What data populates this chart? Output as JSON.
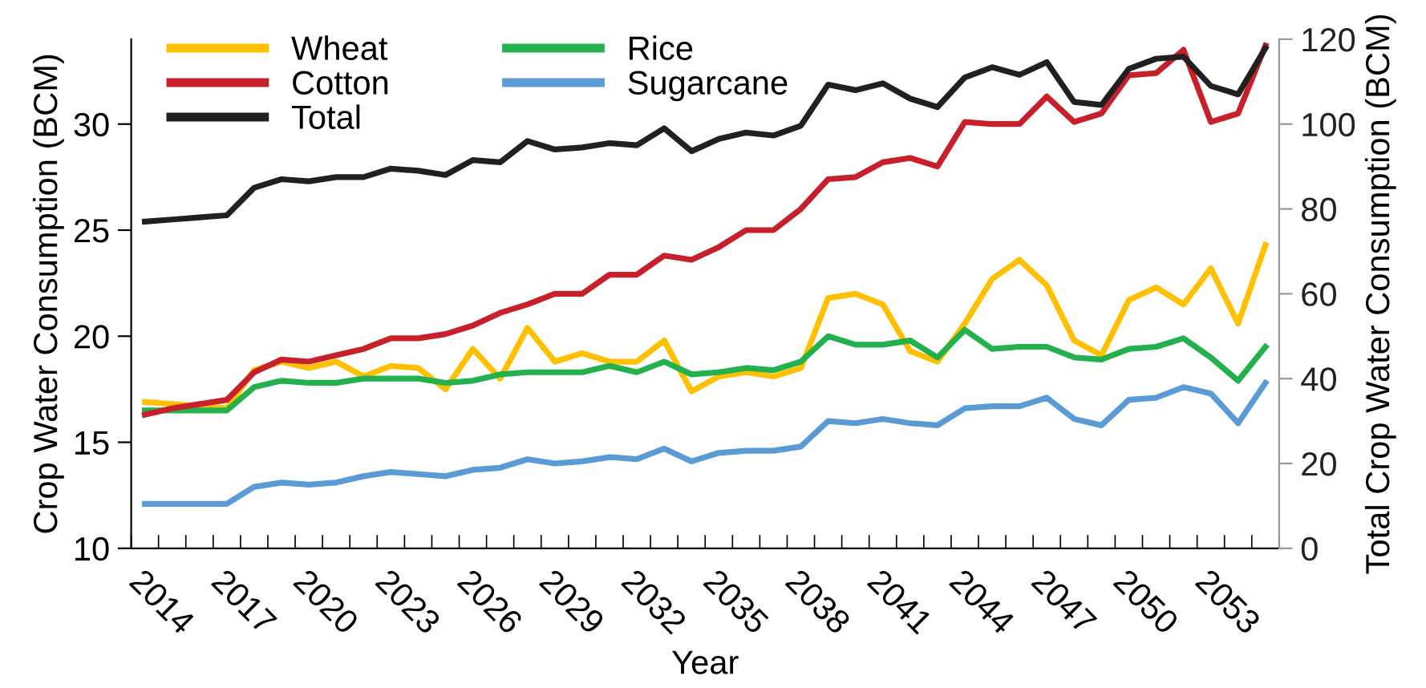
{
  "chart_data": {
    "type": "line",
    "xlabel": "Year",
    "ylabel": "Crop Water Consumption (BCM)",
    "y2label": "Total Crop Water Consumption (BCM)",
    "categories": [
      "2014",
      null,
      null,
      "2017",
      null,
      null,
      "2020",
      null,
      null,
      "2023",
      null,
      null,
      "2026",
      null,
      null,
      "2029",
      null,
      null,
      "2032",
      null,
      null,
      "2035",
      null,
      null,
      "2038",
      null,
      null,
      "2041",
      null,
      null,
      "2044",
      null,
      null,
      "2047",
      null,
      null,
      "2050",
      null,
      null,
      "2053",
      null,
      null
    ],
    "ylim": [
      10,
      34
    ],
    "yticks": [
      10,
      15,
      20,
      25,
      30
    ],
    "y2lim": [
      0,
      120
    ],
    "y2ticks": [
      0,
      20,
      40,
      60,
      80,
      100,
      120
    ],
    "grid": false,
    "legend": "top left",
    "line_style": "solid",
    "marker": "none",
    "series": [
      {
        "name": "Wheat",
        "color": "#ffc000",
        "values": [
          16.9,
          16.8,
          16.7,
          16.6,
          18.4,
          18.8,
          18.5,
          18.8,
          18.1,
          18.6,
          18.5,
          17.5,
          19.4,
          18.0,
          20.4,
          18.8,
          19.2,
          18.8,
          18.8,
          19.8,
          17.4,
          18.1,
          18.3,
          18.1,
          18.5,
          21.8,
          22.0,
          21.5,
          19.3,
          18.8,
          20.6,
          22.7,
          23.6,
          22.4,
          19.8,
          19.1,
          21.7,
          22.3,
          21.5,
          23.2,
          20.6,
          24.3
        ]
      },
      {
        "name": "Rice",
        "color": "#22b14c",
        "values": [
          16.5,
          16.5,
          16.5,
          16.5,
          17.6,
          17.9,
          17.8,
          17.8,
          18.0,
          18.0,
          18.0,
          17.8,
          17.9,
          18.2,
          18.3,
          18.3,
          18.3,
          18.6,
          18.3,
          18.8,
          18.2,
          18.3,
          18.5,
          18.4,
          18.8,
          20.0,
          19.6,
          19.6,
          19.8,
          19.0,
          20.3,
          19.4,
          19.5,
          19.5,
          19.0,
          18.9,
          19.4,
          19.5,
          19.9,
          19.0,
          17.9,
          19.5
        ]
      },
      {
        "name": "Cotton",
        "color": "#c8202a",
        "values": [
          16.3,
          16.6,
          16.8,
          17.0,
          18.3,
          18.9,
          18.8,
          19.1,
          19.4,
          19.9,
          19.9,
          20.1,
          20.5,
          21.1,
          21.5,
          22.0,
          22.0,
          22.9,
          22.9,
          23.8,
          23.6,
          24.2,
          25.0,
          25.0,
          26.0,
          27.4,
          27.5,
          28.2,
          28.4,
          28.0,
          30.1,
          30.0,
          30.0,
          31.3,
          30.1,
          30.5,
          32.3,
          32.4,
          33.5,
          30.1,
          30.5,
          33.7
        ]
      },
      {
        "name": "Sugarcane",
        "color": "#5b9bd5",
        "values": [
          12.1,
          12.1,
          12.1,
          12.1,
          12.9,
          13.1,
          13.0,
          13.1,
          13.4,
          13.6,
          13.5,
          13.4,
          13.7,
          13.8,
          14.2,
          14.0,
          14.1,
          14.3,
          14.2,
          14.7,
          14.1,
          14.5,
          14.6,
          14.6,
          14.8,
          16.0,
          15.9,
          16.1,
          15.9,
          15.8,
          16.6,
          16.7,
          16.7,
          17.1,
          16.1,
          15.8,
          17.0,
          17.1,
          17.6,
          17.3,
          15.9,
          17.8
        ]
      },
      {
        "name": "Total",
        "color": "#231f20",
        "axis": "y2",
        "values": [
          77,
          77.5,
          78,
          78.5,
          85,
          87,
          86.5,
          87.5,
          87.5,
          89.5,
          89,
          88,
          91.5,
          91,
          96,
          94,
          94.5,
          95.5,
          95,
          99,
          93.6,
          96.5,
          98,
          97.3,
          99.6,
          109.3,
          108,
          109.6,
          106,
          104,
          111,
          113.4,
          111.6,
          114.6,
          105.2,
          104.5,
          113,
          115.4,
          115.9,
          109,
          107,
          117.9
        ]
      }
    ]
  }
}
